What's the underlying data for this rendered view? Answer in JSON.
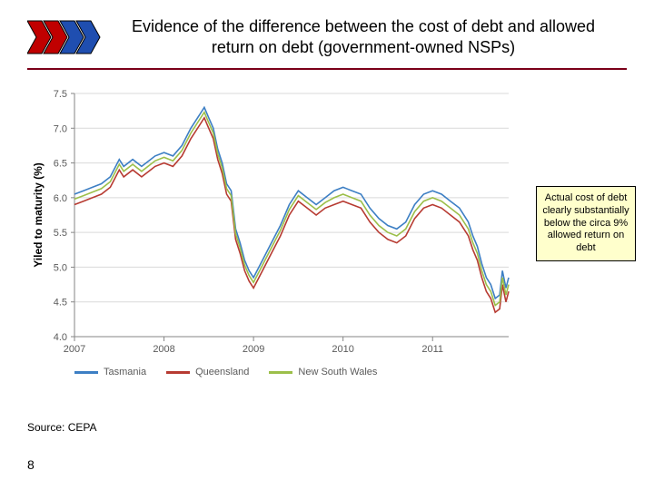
{
  "header": {
    "title": "Evidence of the difference between the cost of debt and allowed return on debt (government-owned NSPs)",
    "logo": {
      "chevrons": 4,
      "colors": [
        "#c00000",
        "#c00000",
        "#1f4eb0",
        "#1f4eb0"
      ],
      "outline": "#000000"
    },
    "divider_color": "#7a0019"
  },
  "chart": {
    "type": "line",
    "y_axis_label": "Yiled to maturity (%)",
    "xlim": [
      2007,
      2011.85
    ],
    "ylim": [
      4.0,
      7.5
    ],
    "ytick_step": 0.5,
    "x_ticks": [
      2007,
      2008,
      2009,
      2010,
      2011
    ],
    "grid_color": "#d9d9d9",
    "axis_color": "#868686",
    "background_color": "#ffffff",
    "tick_label_color": "#5a5a5a",
    "label_fontsize": 12,
    "tick_fontsize": 11,
    "line_width": 1.6,
    "series": [
      {
        "name": "Tasmania",
        "color": "#3d7fc4",
        "x": [
          2007.0,
          2007.1,
          2007.2,
          2007.3,
          2007.4,
          2007.5,
          2007.55,
          2007.65,
          2007.75,
          2007.85,
          2007.9,
          2008.0,
          2008.1,
          2008.2,
          2008.3,
          2008.4,
          2008.45,
          2008.5,
          2008.55,
          2008.6,
          2008.65,
          2008.7,
          2008.75,
          2008.8,
          2008.85,
          2008.9,
          2008.95,
          2009.0,
          2009.1,
          2009.2,
          2009.3,
          2009.4,
          2009.5,
          2009.6,
          2009.7,
          2009.8,
          2009.9,
          2010.0,
          2010.1,
          2010.2,
          2010.3,
          2010.4,
          2010.5,
          2010.6,
          2010.7,
          2010.8,
          2010.9,
          2011.0,
          2011.1,
          2011.2,
          2011.3,
          2011.4,
          2011.45,
          2011.5,
          2011.55,
          2011.6,
          2011.65,
          2011.7,
          2011.75,
          2011.78,
          2011.82,
          2011.85
        ],
        "y": [
          6.05,
          6.1,
          6.15,
          6.2,
          6.3,
          6.55,
          6.45,
          6.55,
          6.45,
          6.55,
          6.6,
          6.65,
          6.6,
          6.75,
          7.0,
          7.2,
          7.3,
          7.15,
          7.0,
          6.7,
          6.5,
          6.2,
          6.1,
          5.55,
          5.35,
          5.1,
          4.95,
          4.85,
          5.1,
          5.35,
          5.6,
          5.9,
          6.1,
          6.0,
          5.9,
          6.0,
          6.1,
          6.15,
          6.1,
          6.05,
          5.85,
          5.7,
          5.6,
          5.55,
          5.65,
          5.9,
          6.05,
          6.1,
          6.05,
          5.95,
          5.85,
          5.65,
          5.45,
          5.3,
          5.05,
          4.85,
          4.75,
          4.55,
          4.6,
          4.95,
          4.7,
          4.85
        ]
      },
      {
        "name": "Queensland",
        "color": "#b73b32",
        "x": [
          2007.0,
          2007.1,
          2007.2,
          2007.3,
          2007.4,
          2007.5,
          2007.55,
          2007.65,
          2007.75,
          2007.85,
          2007.9,
          2008.0,
          2008.1,
          2008.2,
          2008.3,
          2008.4,
          2008.45,
          2008.5,
          2008.55,
          2008.6,
          2008.65,
          2008.7,
          2008.75,
          2008.8,
          2008.85,
          2008.9,
          2008.95,
          2009.0,
          2009.1,
          2009.2,
          2009.3,
          2009.4,
          2009.5,
          2009.6,
          2009.7,
          2009.8,
          2009.9,
          2010.0,
          2010.1,
          2010.2,
          2010.3,
          2010.4,
          2010.5,
          2010.6,
          2010.7,
          2010.8,
          2010.9,
          2011.0,
          2011.1,
          2011.2,
          2011.3,
          2011.4,
          2011.45,
          2011.5,
          2011.55,
          2011.6,
          2011.65,
          2011.7,
          2011.75,
          2011.78,
          2011.82,
          2011.85
        ],
        "y": [
          5.9,
          5.95,
          6.0,
          6.05,
          6.15,
          6.4,
          6.3,
          6.4,
          6.3,
          6.4,
          6.45,
          6.5,
          6.45,
          6.6,
          6.85,
          7.05,
          7.15,
          7.0,
          6.85,
          6.55,
          6.35,
          6.05,
          5.95,
          5.4,
          5.2,
          4.95,
          4.8,
          4.7,
          4.95,
          5.2,
          5.45,
          5.75,
          5.95,
          5.85,
          5.75,
          5.85,
          5.9,
          5.95,
          5.9,
          5.85,
          5.65,
          5.5,
          5.4,
          5.35,
          5.45,
          5.7,
          5.85,
          5.9,
          5.85,
          5.75,
          5.65,
          5.45,
          5.25,
          5.1,
          4.85,
          4.65,
          4.55,
          4.35,
          4.4,
          4.75,
          4.5,
          4.65
        ]
      },
      {
        "name": "New South Wales",
        "color": "#9cbf4a",
        "x": [
          2007.0,
          2007.1,
          2007.2,
          2007.3,
          2007.4,
          2007.5,
          2007.55,
          2007.65,
          2007.75,
          2007.85,
          2007.9,
          2008.0,
          2008.1,
          2008.2,
          2008.3,
          2008.4,
          2008.45,
          2008.5,
          2008.55,
          2008.6,
          2008.65,
          2008.7,
          2008.75,
          2008.8,
          2008.85,
          2008.9,
          2008.95,
          2009.0,
          2009.1,
          2009.2,
          2009.3,
          2009.4,
          2009.5,
          2009.6,
          2009.7,
          2009.8,
          2009.9,
          2010.0,
          2010.1,
          2010.2,
          2010.3,
          2010.4,
          2010.5,
          2010.6,
          2010.7,
          2010.8,
          2010.9,
          2011.0,
          2011.1,
          2011.2,
          2011.3,
          2011.4,
          2011.45,
          2011.5,
          2011.55,
          2011.6,
          2011.65,
          2011.7,
          2011.75,
          2011.78,
          2011.82,
          2011.85
        ],
        "y": [
          5.98,
          6.03,
          6.08,
          6.13,
          6.23,
          6.48,
          6.38,
          6.48,
          6.38,
          6.48,
          6.53,
          6.58,
          6.53,
          6.68,
          6.93,
          7.13,
          7.23,
          7.08,
          6.93,
          6.63,
          6.43,
          6.13,
          6.03,
          5.48,
          5.28,
          5.03,
          4.88,
          4.78,
          5.03,
          5.28,
          5.53,
          5.83,
          6.03,
          5.93,
          5.83,
          5.93,
          6.0,
          6.05,
          6.0,
          5.95,
          5.75,
          5.6,
          5.5,
          5.45,
          5.55,
          5.8,
          5.95,
          6.0,
          5.95,
          5.85,
          5.75,
          5.55,
          5.35,
          5.2,
          4.95,
          4.75,
          4.65,
          4.45,
          4.5,
          4.85,
          4.6,
          4.75
        ]
      }
    ]
  },
  "callout": {
    "text": "Actual cost of debt clearly substantially below the circa 9% allowed return on debt",
    "bg": "#ffffcc",
    "border": "#000000"
  },
  "source_label": "Source: CEPA",
  "page_number": "8"
}
